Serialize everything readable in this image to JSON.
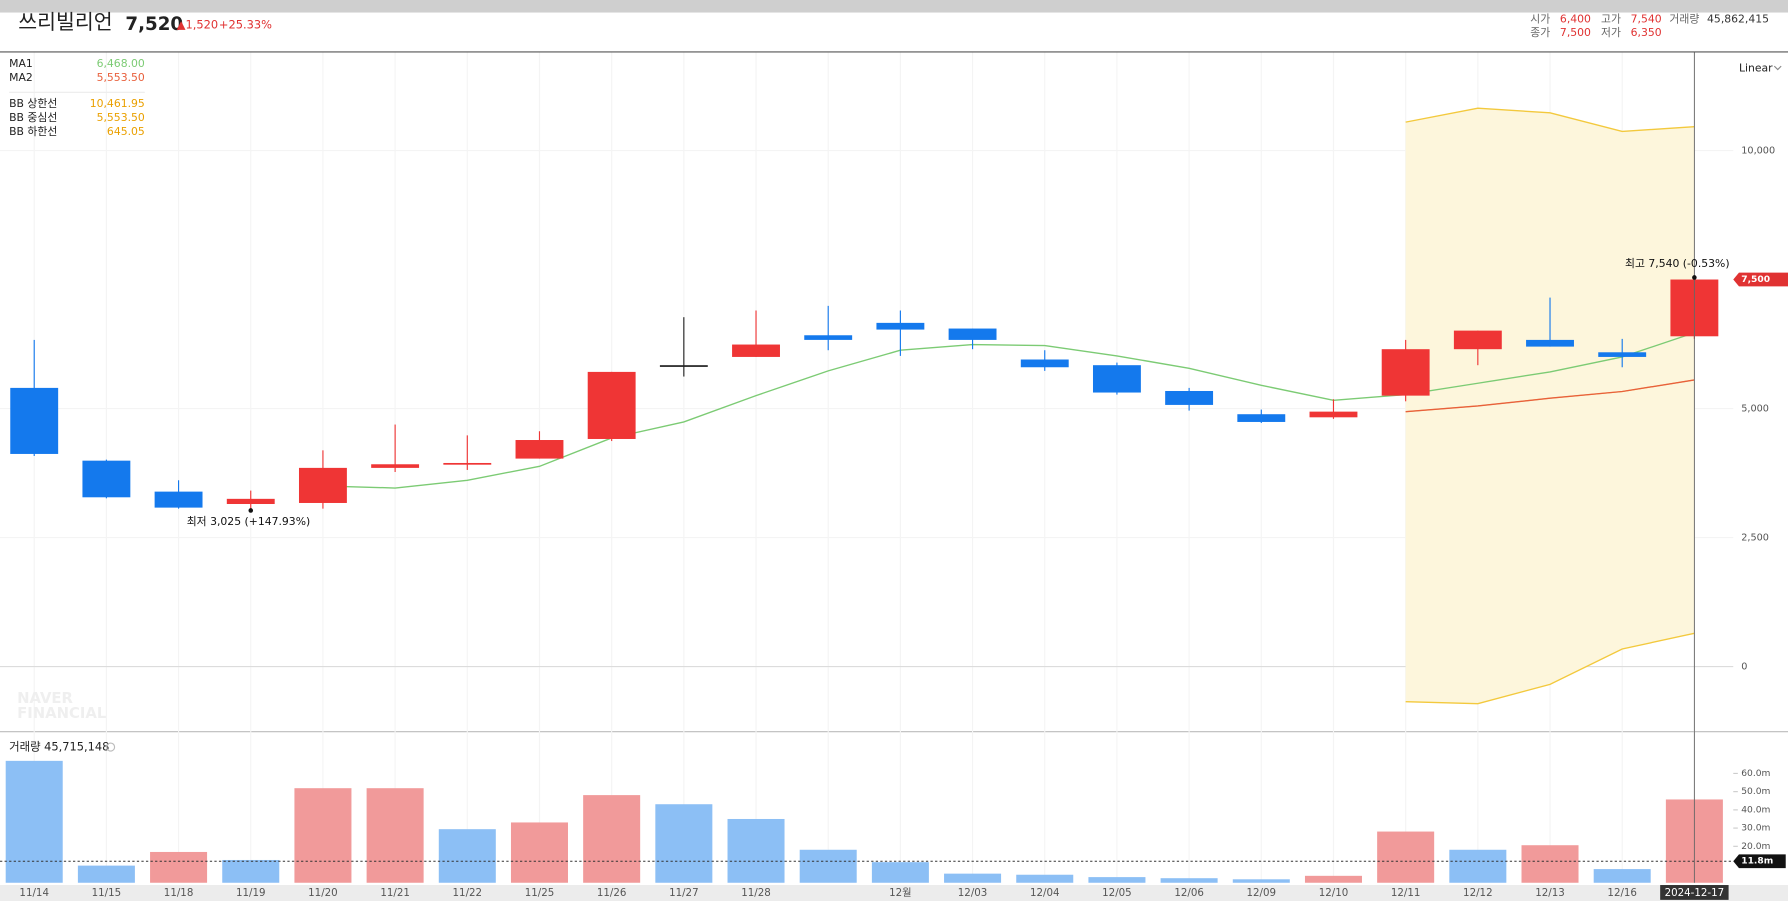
{
  "header": {
    "name": "쓰리빌리언",
    "price": "7,520",
    "change": "▲1,520",
    "change_rate": "+25.33%",
    "quote": [
      {
        "label": "시가",
        "value": "6,400"
      },
      {
        "label": "고가",
        "value": "7,540"
      },
      {
        "label": "종가",
        "value": "7,500"
      },
      {
        "label": "저가",
        "value": "6,350"
      }
    ],
    "volume": {
      "label": "거래량",
      "value": "45,862,415"
    },
    "scale_mode": "Linear",
    "watermark": [
      "NAVER",
      "FINANCIAL"
    ]
  },
  "chart_data": [
    {
      "type": "candlestick",
      "categories": [
        "11/14",
        "11/15",
        "11/18",
        "11/19",
        "11/20",
        "11/21",
        "11/22",
        "11/25",
        "11/26",
        "11/27",
        "11/28",
        null,
        "12월",
        "12/03",
        "12/04",
        "12/05",
        "12/06",
        "12/09",
        "12/10",
        "12/11",
        "12/12",
        "12/13",
        "12/16",
        "2024-12-17"
      ],
      "open": [
        5400,
        3990,
        3390,
        3150,
        3170,
        3850,
        3920,
        4030,
        4410,
        5840,
        6000,
        6420,
        6660,
        6550,
        5950,
        5840,
        5340,
        4890,
        4830,
        5250,
        6150,
        6330,
        6090,
        6400
      ],
      "high": [
        6330,
        4010,
        3610,
        3410,
        4190,
        4690,
        4480,
        4560,
        5710,
        6770,
        6900,
        6990,
        6900,
        6550,
        6130,
        5890,
        5400,
        4980,
        5180,
        6330,
        6510,
        7150,
        6350,
        7540
      ],
      "low": [
        4080,
        3260,
        3060,
        3025,
        3060,
        3770,
        3810,
        4030,
        4370,
        5620,
        6000,
        6130,
        6020,
        6150,
        5730,
        5270,
        4960,
        4720,
        4800,
        5140,
        5840,
        6200,
        5800,
        6350
      ],
      "close": [
        4120,
        3280,
        3080,
        3250,
        3850,
        3920,
        3945,
        4390,
        5710,
        5840,
        6240,
        6330,
        6530,
        6330,
        5800,
        5310,
        5070,
        4740,
        4940,
        6150,
        6510,
        6200,
        6000,
        7500
      ],
      "up_color": "#ef3535",
      "down_color": "#1479ed",
      "flat_color": "#222222",
      "moving_averages": [
        {
          "name": "MA1",
          "legend_value": "6,468.00",
          "color": "#7ccb74",
          "values": [
            null,
            null,
            null,
            null,
            3500,
            3460,
            3610,
            3880,
            4430,
            4740,
            5250,
            5730,
            6130,
            6240,
            6220,
            6020,
            5780,
            5450,
            5160,
            5270,
            5490,
            5710,
            6000,
            6468
          ]
        },
        {
          "name": "MA2",
          "legend_value": "5,553.50",
          "color": "#e8603c",
          "values": [
            null,
            null,
            null,
            null,
            null,
            null,
            null,
            null,
            null,
            null,
            null,
            null,
            null,
            null,
            null,
            null,
            null,
            null,
            null,
            4940,
            5050,
            5200,
            5330,
            5553.5
          ]
        }
      ],
      "bollinger": {
        "color": "#f3c93d",
        "text_color": "#eaa000",
        "fill": "#fdf6dc",
        "upper": {
          "name": "BB 상한선",
          "legend_value": "10,461.95",
          "values": [
            null,
            null,
            null,
            null,
            null,
            null,
            null,
            null,
            null,
            null,
            null,
            null,
            null,
            null,
            null,
            null,
            null,
            null,
            null,
            10550,
            10820,
            10730,
            10370,
            10461.95
          ]
        },
        "middle": {
          "name": "BB 중심선",
          "legend_value": "5,553.50",
          "values": [
            null,
            null,
            null,
            null,
            null,
            null,
            null,
            null,
            null,
            null,
            null,
            null,
            null,
            null,
            null,
            null,
            null,
            null,
            null,
            4940,
            5050,
            5200,
            5330,
            5553.5
          ]
        },
        "lower": {
          "name": "BB 하한선",
          "legend_value": "645.05",
          "values": [
            null,
            null,
            null,
            null,
            null,
            null,
            null,
            null,
            null,
            null,
            null,
            null,
            null,
            null,
            null,
            null,
            null,
            null,
            null,
            -680,
            -720,
            -345,
            340,
            645.05
          ]
        }
      },
      "annotations": [
        {
          "text": "최고 7,540 (-0.53%)",
          "index": 23,
          "at": "high"
        },
        {
          "text": "최저 3,025 (+147.93%)",
          "index": 3,
          "at": "low"
        }
      ],
      "current_price": {
        "value": 7500,
        "label": "7,500",
        "color": "#e03232"
      },
      "ylim": [
        -1250,
        11900
      ],
      "yticks": [
        0,
        {
          "value": 2500,
          "label": "2,500"
        },
        {
          "value": 5000,
          "label": "5,000"
        },
        {
          "value": 10000,
          "label": "10,000"
        }
      ],
      "grid": true
    },
    {
      "type": "bar",
      "title": "거래량 45,715,148",
      "values": [
        66.9,
        9.4,
        16.9,
        12.5,
        51.9,
        51.9,
        29.4,
        33.1,
        48.1,
        43.1,
        35,
        18.1,
        11.3,
        5,
        4.4,
        3.1,
        2.5,
        1.9,
        3.8,
        28.1,
        18.1,
        20.6,
        7.5,
        45.715148
      ],
      "colors": [
        "#8cbff5",
        "#8cbff5",
        "#f19a9a",
        "#8cbff5",
        "#f19a9a",
        "#f19a9a",
        "#8cbff5",
        "#f19a9a",
        "#f19a9a",
        "#8cbff5",
        "#8cbff5",
        "#8cbff5",
        "#8cbff5",
        "#8cbff5",
        "#8cbff5",
        "#8cbff5",
        "#8cbff5",
        "#8cbff5",
        "#f19a9a",
        "#f19a9a",
        "#8cbff5",
        "#f19a9a",
        "#8cbff5",
        "#f19a9a"
      ],
      "ylim": [
        0,
        82
      ],
      "yticks": [
        {
          "value": 20,
          "label": "20.0m"
        },
        {
          "value": 30,
          "label": "30.0m"
        },
        {
          "value": 40,
          "label": "40.0m"
        },
        {
          "value": 50,
          "label": "50.0m"
        },
        {
          "value": 60,
          "label": "60.0m"
        }
      ],
      "crosshair": {
        "value": 11.8,
        "label": "11.8m"
      }
    }
  ]
}
